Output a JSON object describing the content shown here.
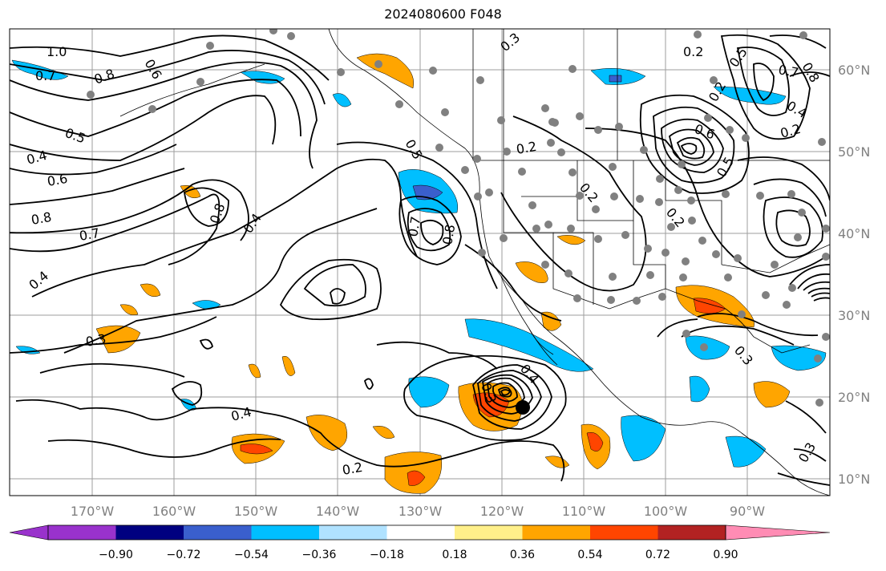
{
  "title": "2024080600 F048",
  "map": {
    "projection": "lat-lon",
    "lon_range": [
      "~-177",
      "~-81"
    ],
    "lat_range": [
      "~8",
      "~65"
    ],
    "gridlines": true,
    "lon_ticks": [
      "170°W",
      "160°W",
      "150°W",
      "140°W",
      "130°W",
      "120°W",
      "110°W",
      "100°W",
      "90°W"
    ],
    "lat_ticks": [
      "60°N",
      "50°N",
      "40°N",
      "30°N",
      "20°N",
      "10°N"
    ],
    "contour_color": "#000000",
    "contour_labels": [
      {
        "text": "1.0"
      },
      {
        "text": "0.7"
      },
      {
        "text": "0.8"
      },
      {
        "text": "0.6"
      },
      {
        "text": "0.5"
      },
      {
        "text": "0.4"
      },
      {
        "text": "0.6"
      },
      {
        "text": "0.8"
      },
      {
        "text": "0.7"
      },
      {
        "text": "0.8"
      },
      {
        "text": "0.4"
      },
      {
        "text": "0.4"
      },
      {
        "text": "0.3"
      },
      {
        "text": "0.4"
      },
      {
        "text": "0.2"
      },
      {
        "text": "0.5"
      },
      {
        "text": "0.7"
      },
      {
        "text": "0.8"
      },
      {
        "text": "0.3"
      },
      {
        "text": "0.2"
      },
      {
        "text": "0.2"
      },
      {
        "text": "0.2"
      },
      {
        "text": "0.2"
      },
      {
        "text": "0.5"
      },
      {
        "text": "0.8"
      },
      {
        "text": "0.7"
      },
      {
        "text": "0.6"
      },
      {
        "text": "0.4"
      },
      {
        "text": "0.2"
      },
      {
        "text": "0.5"
      },
      {
        "text": "0.3"
      },
      {
        "text": "0.4"
      },
      {
        "text": "0.3"
      },
      {
        "text": "0.2"
      },
      {
        "text": "0.3"
      }
    ],
    "storm_marker": {
      "lon": -117.8,
      "lat": 18.8,
      "color": "#000000"
    },
    "stations_color": "#808080"
  },
  "colorbar": {
    "ticks": [
      "−0.90",
      "−0.72",
      "−0.54",
      "−0.36",
      "−0.18",
      "0.18",
      "0.36",
      "0.54",
      "0.72",
      "0.90"
    ],
    "colors": [
      "#9932cc",
      "#000080",
      "#3a5fcd",
      "#00bfff",
      "#b0e2ff",
      "#ffffff",
      "#fff08a",
      "#ffa500",
      "#ff4500",
      "#b22222",
      "#ff8cb4"
    ]
  }
}
